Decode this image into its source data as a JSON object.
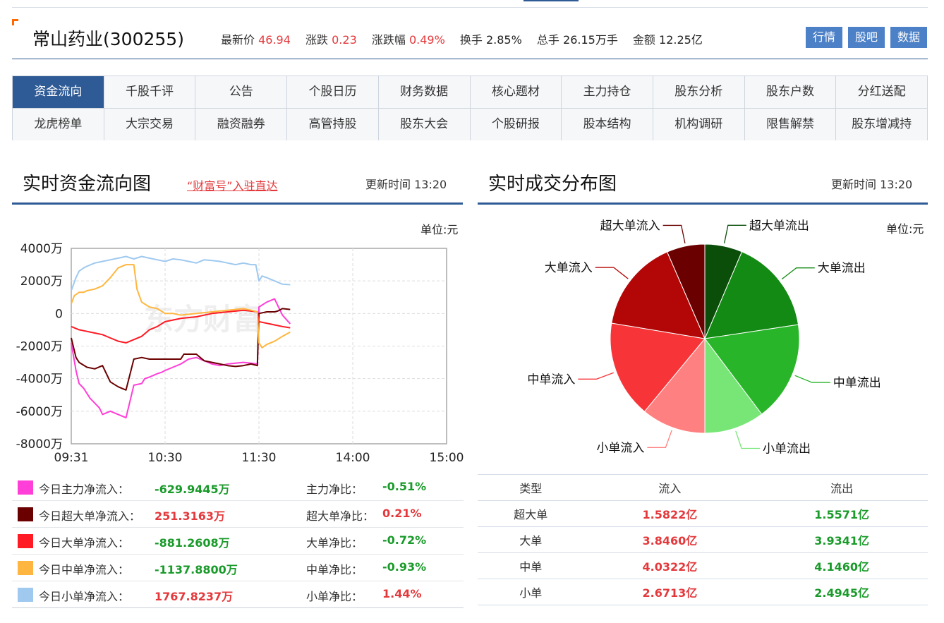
{
  "stock": {
    "name": "常山药业(300255)",
    "price_label": "最新价",
    "price": "46.94",
    "change_label": "涨跌",
    "change": "0.23",
    "pct_label": "涨跌幅",
    "pct": "0.49%",
    "turnover_label": "换手",
    "turnover": "2.85%",
    "volume_label": "总手",
    "volume": "26.15万手",
    "amount_label": "金额",
    "amount": "12.25亿"
  },
  "header_buttons": [
    "行情",
    "股吧",
    "数据"
  ],
  "nav": {
    "row1": [
      "资金流向",
      "千股千评",
      "公告",
      "个股日历",
      "财务数据",
      "核心题材",
      "主力持仓",
      "股东分析",
      "股东户数",
      "分红送配"
    ],
    "row2": [
      "龙虎榜单",
      "大宗交易",
      "融资融券",
      "高管持股",
      "股东大会",
      "个股研报",
      "股本结构",
      "机构调研",
      "限售解禁",
      "股东增减持"
    ],
    "active": "资金流向"
  },
  "left_panel": {
    "title": "实时资金流向图",
    "link": "“财富号”入驻直达",
    "update": "更新时间 13:20",
    "unit": "单位:元",
    "watermark": "东方财富"
  },
  "right_panel": {
    "title": "实时成交分布图",
    "update": "更新时间 13:20",
    "unit": "单位:元"
  },
  "legend": [
    {
      "label": "今日主力净流入：",
      "value": "-629.9445万",
      "ratio_label": "主力净比：",
      "ratio": "-0.51%",
      "color": "#ff3fd8",
      "value_class": "green",
      "ratio_class": "green"
    },
    {
      "label": "今日超大单净流入：",
      "value": "251.3163万",
      "ratio_label": "超大单净比：",
      "ratio": "0.21%",
      "color": "#6b0000",
      "value_class": "red",
      "ratio_class": "red"
    },
    {
      "label": "今日大单净流入：",
      "value": "-881.2608万",
      "ratio_label": "大单净比：",
      "ratio": "-0.72%",
      "color": "#ff1a24",
      "value_class": "green",
      "ratio_class": "green"
    },
    {
      "label": "今日中单净流入：",
      "value": "-1137.8800万",
      "ratio_label": "中单净比：",
      "ratio": "-0.93%",
      "color": "#ffb640",
      "value_class": "green",
      "ratio_class": "green"
    },
    {
      "label": "今日小单净流入：",
      "value": "1767.8237万",
      "ratio_label": "小单净比：",
      "ratio": "1.44%",
      "color": "#9fc9ef",
      "value_class": "red",
      "ratio_class": "red"
    }
  ],
  "table": {
    "headers": [
      "类型",
      "流入",
      "流出"
    ],
    "rows": [
      {
        "type": "超大单",
        "in": "1.5822亿",
        "out": "1.5571亿"
      },
      {
        "type": "大单",
        "in": "3.8460亿",
        "out": "3.9341亿"
      },
      {
        "type": "中单",
        "in": "4.0322亿",
        "out": "4.1460亿"
      },
      {
        "type": "小单",
        "in": "2.6713亿",
        "out": "2.4945亿"
      }
    ]
  },
  "chart_data": [
    {
      "type": "line",
      "title": "实时资金流向图",
      "unit": "万",
      "x_ticks": [
        "09:31",
        "10:30",
        "11:30",
        "14:00",
        "15:00"
      ],
      "y_ticks": [
        "4000万",
        "2000万",
        "0",
        "-2000万",
        "-4000万",
        "-6000万",
        "-8000万"
      ],
      "ylim": [
        -8000,
        4000
      ],
      "grid": true,
      "series": [
        {
          "name": "今日主力净流入",
          "color": "#ff3fd8",
          "x": [
            0,
            3,
            5,
            8,
            12,
            15,
            18,
            20,
            25,
            30,
            35,
            40,
            45,
            47,
            50,
            55,
            58,
            60,
            65,
            70,
            75,
            80,
            85,
            90,
            95,
            100,
            110,
            115,
            119,
            120,
            125,
            130,
            132,
            135,
            140
          ],
          "y": [
            -1800,
            -3500,
            -4300,
            -4600,
            -5200,
            -5500,
            -5800,
            -6200,
            -6000,
            -6200,
            -6400,
            -4400,
            -4300,
            -4000,
            -3900,
            -3700,
            -3600,
            -3500,
            -3300,
            -3100,
            -2800,
            -2700,
            -2900,
            -3100,
            -3200,
            -3100,
            -3000,
            -3050,
            -3100,
            400,
            700,
            900,
            500,
            -100,
            -630
          ]
        },
        {
          "name": "今日超大单净流入",
          "color": "#6b0000",
          "x": [
            0,
            3,
            5,
            10,
            15,
            20,
            25,
            30,
            35,
            40,
            45,
            50,
            60,
            70,
            72,
            75,
            80,
            85,
            90,
            95,
            100,
            105,
            110,
            115,
            119,
            120,
            125,
            130,
            132,
            135,
            140
          ],
          "y": [
            -1500,
            -2700,
            -3000,
            -3300,
            -3400,
            -3200,
            -4200,
            -4500,
            -4700,
            -2800,
            -2700,
            -2800,
            -2800,
            -2800,
            -2500,
            -2500,
            -2500,
            -2900,
            -3000,
            -3100,
            -3200,
            -3250,
            -3200,
            -3100,
            -3200,
            0,
            100,
            100,
            150,
            300,
            250
          ]
        },
        {
          "name": "今日大单净流入",
          "color": "#ff1a24",
          "x": [
            0,
            5,
            10,
            15,
            20,
            25,
            30,
            35,
            40,
            45,
            50,
            55,
            60,
            70,
            80,
            90,
            100,
            110,
            115,
            119,
            120,
            125,
            130,
            135,
            140
          ],
          "y": [
            -800,
            -1000,
            -1100,
            -1200,
            -1300,
            -1500,
            -1700,
            -1800,
            -1600,
            -1400,
            -1000,
            -800,
            -500,
            -300,
            -200,
            0,
            100,
            200,
            150,
            100,
            -500,
            -600,
            -700,
            -800,
            -880
          ]
        },
        {
          "name": "今日中单净流入",
          "color": "#ffb640",
          "x": [
            0,
            2,
            5,
            8,
            10,
            15,
            20,
            25,
            30,
            35,
            40,
            42,
            45,
            50,
            55,
            60,
            65,
            70,
            80,
            90,
            100,
            110,
            115,
            119,
            120,
            122,
            125,
            130,
            135,
            140
          ],
          "y": [
            600,
            1100,
            1300,
            1300,
            1400,
            1500,
            1700,
            2200,
            2800,
            3000,
            3000,
            1500,
            700,
            400,
            300,
            0,
            0,
            -100,
            0,
            100,
            200,
            300,
            200,
            100,
            -1800,
            -2100,
            -1900,
            -1700,
            -1400,
            -1140
          ]
        },
        {
          "name": "今日小单净流入",
          "color": "#9fc9ef",
          "x": [
            0,
            3,
            5,
            8,
            10,
            15,
            20,
            25,
            30,
            35,
            40,
            45,
            50,
            55,
            60,
            65,
            70,
            75,
            80,
            85,
            90,
            95,
            100,
            105,
            110,
            115,
            118,
            120,
            122,
            125,
            130,
            135,
            140
          ],
          "y": [
            1400,
            2200,
            2600,
            2800,
            2900,
            3100,
            3200,
            3300,
            3400,
            3500,
            3350,
            3500,
            3400,
            3300,
            3200,
            3350,
            3300,
            3200,
            3100,
            3300,
            3250,
            3200,
            3100,
            3000,
            3100,
            3000,
            3000,
            2000,
            2300,
            2200,
            2000,
            1800,
            1770
          ]
        }
      ]
    },
    {
      "type": "pie",
      "title": "实时成交分布图",
      "unit": "亿",
      "slices": [
        {
          "name": "超大单流出",
          "value": 1.5571,
          "color": "#0a4e0a"
        },
        {
          "name": "大单流出",
          "value": 3.9341,
          "color": "#138a13"
        },
        {
          "name": "中单流出",
          "value": 4.146,
          "color": "#29b529"
        },
        {
          "name": "小单流出",
          "value": 2.4945,
          "color": "#77e677"
        },
        {
          "name": "小单流入",
          "value": 2.6713,
          "color": "#ff8080"
        },
        {
          "name": "中单流入",
          "value": 4.0322,
          "color": "#f73538"
        },
        {
          "name": "大单流入",
          "value": 3.846,
          "color": "#b30707"
        },
        {
          "name": "超大单流入",
          "value": 1.5822,
          "color": "#6b0000"
        }
      ]
    }
  ]
}
